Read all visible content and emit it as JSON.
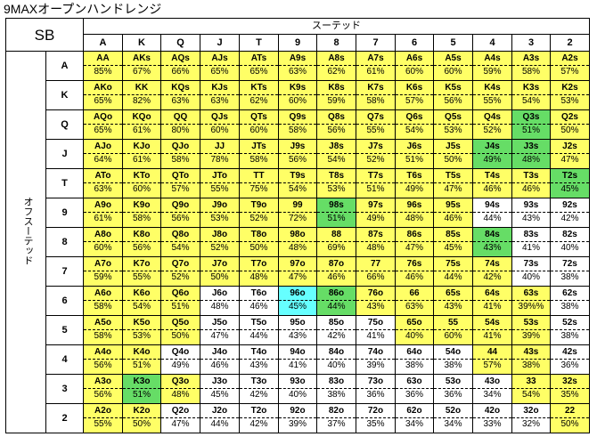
{
  "title": "9MAXオープンハンドレンジ",
  "position": "SB",
  "suited_label": "スーテッド",
  "offsuit_label": "オフスーテッド",
  "ranks": [
    "A",
    "K",
    "Q",
    "J",
    "T",
    "9",
    "8",
    "7",
    "6",
    "5",
    "4",
    "3",
    "2"
  ],
  "colors": {
    "yellow": "#ffff66",
    "green": "#66dd66",
    "cyan": "#66ffff",
    "white": "#ffffff"
  },
  "rows": [
    {
      "hands": [
        "AA",
        "AKs",
        "AQs",
        "AJs",
        "ATs",
        "A9s",
        "A8s",
        "A7s",
        "A6s",
        "A5s",
        "A4s",
        "A3s",
        "A2s"
      ],
      "pcts": [
        "85%",
        "67%",
        "66%",
        "65%",
        "65%",
        "63%",
        "62%",
        "61%",
        "60%",
        "60%",
        "59%",
        "58%",
        "57%"
      ],
      "fills": [
        "y",
        "y",
        "y",
        "y",
        "y",
        "y",
        "y",
        "y",
        "y",
        "y",
        "y",
        "y",
        "y"
      ]
    },
    {
      "hands": [
        "AKo",
        "KK",
        "KQs",
        "KJs",
        "KTs",
        "K9s",
        "K8s",
        "K7s",
        "K6s",
        "K5s",
        "K4s",
        "K3s",
        "K2s"
      ],
      "pcts": [
        "65%",
        "82%",
        "63%",
        "63%",
        "62%",
        "60%",
        "59%",
        "58%",
        "57%",
        "56%",
        "55%",
        "54%",
        "53%"
      ],
      "fills": [
        "y",
        "y",
        "y",
        "y",
        "y",
        "y",
        "y",
        "y",
        "y",
        "y",
        "y",
        "y",
        "y"
      ]
    },
    {
      "hands": [
        "AQo",
        "KQo",
        "QQ",
        "QJs",
        "QTs",
        "Q9s",
        "Q8s",
        "Q7s",
        "Q6s",
        "Q5s",
        "Q4s",
        "Q3s",
        "Q2s"
      ],
      "pcts": [
        "65%",
        "61%",
        "80%",
        "60%",
        "60%",
        "58%",
        "56%",
        "55%",
        "54%",
        "53%",
        "52%",
        "51%",
        "50%"
      ],
      "fills": [
        "y",
        "y",
        "y",
        "y",
        "y",
        "y",
        "y",
        "y",
        "y",
        "y",
        "y",
        "g",
        "y"
      ]
    },
    {
      "hands": [
        "AJo",
        "KJo",
        "QJo",
        "JJ",
        "JTs",
        "J9s",
        "J8s",
        "J7s",
        "J6s",
        "J5s",
        "J4s",
        "J3s",
        "J2s"
      ],
      "pcts": [
        "64%",
        "61%",
        "58%",
        "78%",
        "58%",
        "56%",
        "54%",
        "52%",
        "51%",
        "50%",
        "49%",
        "48%",
        "47%"
      ],
      "fills": [
        "y",
        "y",
        "y",
        "y",
        "y",
        "y",
        "y",
        "y",
        "y",
        "y",
        "g",
        "g",
        "y"
      ]
    },
    {
      "hands": [
        "ATo",
        "KTo",
        "QTo",
        "JTo",
        "TT",
        "T9s",
        "T8s",
        "T7s",
        "T6s",
        "T5s",
        "T4s",
        "T3s",
        "T2s"
      ],
      "pcts": [
        "63%",
        "60%",
        "57%",
        "55%",
        "75%",
        "54%",
        "53%",
        "51%",
        "49%",
        "47%",
        "46%",
        "46%",
        "45%"
      ],
      "fills": [
        "y",
        "y",
        "y",
        "y",
        "y",
        "y",
        "y",
        "y",
        "y",
        "y",
        "y",
        "y",
        "g"
      ]
    },
    {
      "hands": [
        "A9o",
        "K9o",
        "Q9o",
        "J9o",
        "T9o",
        "99",
        "98s",
        "97s",
        "96s",
        "95s",
        "94s",
        "93s",
        "92s"
      ],
      "pcts": [
        "61%",
        "58%",
        "56%",
        "53%",
        "52%",
        "72%",
        "51%",
        "49%",
        "48%",
        "46%",
        "44%",
        "43%",
        "42%"
      ],
      "fills": [
        "y",
        "y",
        "y",
        "y",
        "y",
        "y",
        "g",
        "y",
        "y",
        "y",
        "w",
        "w",
        "w"
      ]
    },
    {
      "hands": [
        "A8o",
        "K8o",
        "Q8o",
        "J8o",
        "T8o",
        "98o",
        "88",
        "87s",
        "86s",
        "85s",
        "84s",
        "83s",
        "82s"
      ],
      "pcts": [
        "60%",
        "56%",
        "54%",
        "52%",
        "50%",
        "48%",
        "69%",
        "48%",
        "47%",
        "45%",
        "43%",
        "41%",
        "40%"
      ],
      "fills": [
        "y",
        "y",
        "y",
        "y",
        "y",
        "y",
        "y",
        "y",
        "y",
        "y",
        "g",
        "w",
        "w"
      ]
    },
    {
      "hands": [
        "A7o",
        "K7o",
        "Q7o",
        "J7o",
        "T7o",
        "97o",
        "87o",
        "77",
        "76s",
        "75s",
        "74s",
        "73s",
        "72s"
      ],
      "pcts": [
        "59%",
        "55%",
        "52%",
        "50%",
        "48%",
        "47%",
        "46%",
        "66%",
        "46%",
        "44%",
        "42%",
        "40%",
        "38%"
      ],
      "fills": [
        "y",
        "y",
        "y",
        "y",
        "y",
        "y",
        "y",
        "y",
        "y",
        "y",
        "y",
        "w",
        "w"
      ]
    },
    {
      "hands": [
        "A6o",
        "K6o",
        "Q6o",
        "J6o",
        "T6o",
        "96o",
        "86o",
        "76o",
        "66",
        "65s",
        "64s",
        "63s",
        "62s"
      ],
      "pcts": [
        "58%",
        "54%",
        "51%",
        "48%",
        "46%",
        "45%",
        "44%",
        "43%",
        "63%",
        "43%",
        "41%",
        "39%%",
        "38%"
      ],
      "fills": [
        "y",
        "y",
        "y",
        "w",
        "w",
        "c",
        "g",
        "y",
        "y",
        "y",
        "y",
        "y",
        "w"
      ]
    },
    {
      "hands": [
        "A5o",
        "K5o",
        "Q5o",
        "J5o",
        "T5o",
        "95o",
        "85o",
        "75o",
        "65o",
        "55",
        "54s",
        "53s",
        "52s"
      ],
      "pcts": [
        "58%",
        "53%",
        "50%",
        "47%",
        "44%",
        "43%",
        "42%",
        "41%",
        "40%",
        "60%",
        "41%",
        "39%",
        "38%"
      ],
      "fills": [
        "y",
        "y",
        "y",
        "w",
        "w",
        "w",
        "w",
        "w",
        "y",
        "y",
        "y",
        "y",
        "w"
      ]
    },
    {
      "hands": [
        "A4o",
        "K4o",
        "Q4o",
        "J4o",
        "T4o",
        "94o",
        "84o",
        "74o",
        "64o",
        "54o",
        "44",
        "43s",
        "42s"
      ],
      "pcts": [
        "56%",
        "51%",
        "49%",
        "46%",
        "43%",
        "41%",
        "40%",
        "39%",
        "38%",
        "38%",
        "57%",
        "38%",
        "36%"
      ],
      "fills": [
        "y",
        "y",
        "w",
        "w",
        "w",
        "w",
        "w",
        "w",
        "w",
        "w",
        "y",
        "y",
        "w"
      ]
    },
    {
      "hands": [
        "A3o",
        "K3o",
        "Q3o",
        "J3o",
        "T3o",
        "93o",
        "83o",
        "73o",
        "63o",
        "53o",
        "43o",
        "33",
        "32s"
      ],
      "pcts": [
        "56%",
        "51%",
        "48%",
        "45%",
        "42%",
        "40%",
        "38%",
        "36%",
        "36%",
        "36%",
        "34%",
        "54%",
        "35%"
      ],
      "fills": [
        "y",
        "g",
        "y",
        "w",
        "w",
        "w",
        "w",
        "w",
        "w",
        "w",
        "w",
        "y",
        "y"
      ]
    },
    {
      "hands": [
        "A2o",
        "K2o",
        "Q2o",
        "J2o",
        "T2o",
        "92o",
        "82o",
        "72o",
        "62o",
        "52o",
        "42o",
        "32o",
        "22"
      ],
      "pcts": [
        "55%",
        "50%",
        "47%",
        "44%",
        "42%",
        "39%",
        "37%",
        "35%",
        "34%",
        "34%",
        "33%",
        "32%",
        "50%"
      ],
      "fills": [
        "y",
        "y",
        "w",
        "w",
        "w",
        "w",
        "w",
        "w",
        "w",
        "w",
        "w",
        "w",
        "y"
      ]
    }
  ]
}
